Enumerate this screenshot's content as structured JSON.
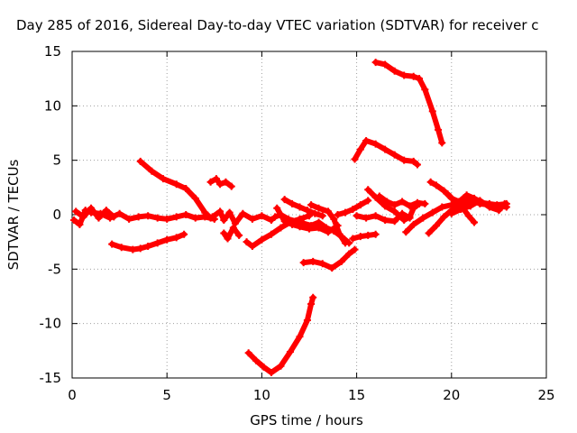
{
  "chart_data": {
    "type": "scatter",
    "title": "Day 285 of 2016, Sidereal Day-to-day VTEC variation (SDTVAR) for receiver c",
    "xlabel": "GPS time / hours",
    "ylabel": "SDTVAR / TECUs",
    "xlim": [
      0,
      25
    ],
    "ylim": [
      -15,
      15
    ],
    "x_ticks": [
      0,
      5,
      10,
      15,
      20,
      25
    ],
    "y_ticks": [
      -15,
      -10,
      -5,
      0,
      5,
      10,
      15
    ],
    "grid": true,
    "marker_color": "#ff0000",
    "series": [
      {
        "values": [
          [
            16.0,
            14.0
          ],
          [
            16.5,
            13.8
          ],
          [
            17.0,
            13.2
          ],
          [
            17.5,
            12.8
          ],
          [
            18.0,
            12.7
          ],
          [
            18.3,
            12.5
          ],
          [
            18.6,
            11.5
          ],
          [
            19.0,
            9.5
          ],
          [
            19.3,
            7.8
          ],
          [
            19.5,
            6.6
          ]
        ]
      },
      {
        "values": [
          [
            14.9,
            5.1
          ],
          [
            15.2,
            6.0
          ],
          [
            15.5,
            6.8
          ],
          [
            16.0,
            6.5
          ],
          [
            16.5,
            6.0
          ],
          [
            17.0,
            5.5
          ],
          [
            17.5,
            5.0
          ],
          [
            18.0,
            4.9
          ],
          [
            18.2,
            4.6
          ]
        ]
      },
      {
        "values": [
          [
            3.6,
            4.9
          ],
          [
            4.2,
            4.0
          ],
          [
            4.8,
            3.3
          ],
          [
            5.5,
            2.8
          ],
          [
            6.0,
            2.4
          ],
          [
            6.5,
            1.5
          ],
          [
            7.0,
            0.2
          ],
          [
            7.3,
            -0.3
          ]
        ]
      },
      {
        "values": [
          [
            7.3,
            3.0
          ],
          [
            7.6,
            3.3
          ],
          [
            7.8,
            2.8
          ],
          [
            8.1,
            3.0
          ],
          [
            8.4,
            2.6
          ]
        ]
      },
      {
        "values": [
          [
            0.1,
            -0.5
          ],
          [
            0.4,
            -0.9
          ],
          [
            0.7,
            0.4
          ],
          [
            1.0,
            0.2
          ],
          [
            1.5,
            0.1
          ],
          [
            2.0,
            -0.3
          ],
          [
            2.5,
            0.1
          ],
          [
            3.0,
            -0.4
          ],
          [
            3.5,
            -0.2
          ],
          [
            4.0,
            -0.1
          ],
          [
            4.5,
            -0.3
          ],
          [
            5.0,
            -0.4
          ],
          [
            5.5,
            -0.2
          ],
          [
            6.0,
            0.0
          ],
          [
            6.5,
            -0.3
          ],
          [
            7.0,
            -0.2
          ],
          [
            7.5,
            -0.4
          ]
        ]
      },
      {
        "values": [
          [
            0.2,
            0.3
          ],
          [
            0.6,
            -0.2
          ],
          [
            1.0,
            0.6
          ],
          [
            1.4,
            -0.3
          ],
          [
            1.8,
            0.4
          ],
          [
            2.2,
            -0.2
          ]
        ]
      },
      {
        "values": [
          [
            7.4,
            -0.2
          ],
          [
            7.8,
            0.3
          ],
          [
            8.0,
            -0.5
          ],
          [
            8.3,
            0.2
          ],
          [
            8.6,
            -0.8
          ],
          [
            9.0,
            0.1
          ],
          [
            9.5,
            -0.4
          ],
          [
            10.0,
            -0.1
          ],
          [
            10.5,
            -0.5
          ]
        ]
      },
      {
        "values": [
          [
            8.0,
            -1.7
          ],
          [
            8.2,
            -2.2
          ],
          [
            8.5,
            -1.2
          ],
          [
            8.8,
            -1.9
          ]
        ]
      },
      {
        "values": [
          [
            2.1,
            -2.7
          ],
          [
            2.6,
            -3.0
          ],
          [
            3.2,
            -3.2
          ],
          [
            3.6,
            -3.1
          ],
          [
            4.0,
            -2.9
          ],
          [
            4.5,
            -2.6
          ],
          [
            5.0,
            -2.3
          ],
          [
            5.5,
            -2.1
          ],
          [
            5.9,
            -1.8
          ]
        ]
      },
      {
        "values": [
          [
            9.2,
            -2.5
          ],
          [
            9.5,
            -2.9
          ],
          [
            10.0,
            -2.3
          ],
          [
            10.5,
            -1.8
          ],
          [
            11.0,
            -1.2
          ],
          [
            11.5,
            -0.7
          ],
          [
            12.0,
            -0.4
          ],
          [
            12.5,
            -0.1
          ]
        ]
      },
      {
        "values": [
          [
            10.7,
            -0.2
          ],
          [
            11.0,
            0.0
          ],
          [
            11.4,
            -0.4
          ],
          [
            11.8,
            -0.6
          ],
          [
            12.2,
            -0.8
          ],
          [
            12.6,
            -1.0
          ],
          [
            13.0,
            -0.7
          ],
          [
            13.4,
            -1.2
          ],
          [
            13.8,
            -1.5
          ],
          [
            14.2,
            -2.0
          ],
          [
            14.6,
            -2.6
          ]
        ]
      },
      {
        "values": [
          [
            11.2,
            1.4
          ],
          [
            11.6,
            1.0
          ],
          [
            12.0,
            0.7
          ],
          [
            12.4,
            0.4
          ],
          [
            12.8,
            0.1
          ],
          [
            13.2,
            -0.1
          ]
        ]
      },
      {
        "values": [
          [
            10.8,
            0.6
          ],
          [
            11.2,
            -0.6
          ],
          [
            11.6,
            -0.9
          ],
          [
            12.0,
            -1.1
          ],
          [
            12.5,
            -1.3
          ],
          [
            13.0,
            -1.2
          ],
          [
            13.5,
            -1.6
          ],
          [
            14.0,
            -1.0
          ]
        ]
      },
      {
        "values": [
          [
            12.6,
            0.9
          ],
          [
            13.0,
            0.6
          ],
          [
            13.5,
            0.3
          ],
          [
            13.8,
            -0.4
          ],
          [
            14.1,
            -1.8
          ],
          [
            14.4,
            -2.6
          ]
        ]
      },
      {
        "values": [
          [
            14.0,
            0.0
          ],
          [
            14.4,
            0.2
          ],
          [
            14.8,
            0.5
          ],
          [
            15.2,
            0.9
          ],
          [
            15.6,
            1.3
          ]
        ]
      },
      {
        "values": [
          [
            14.8,
            -2.2
          ],
          [
            15.2,
            -2.0
          ],
          [
            15.6,
            -1.9
          ],
          [
            16.0,
            -1.8
          ]
        ]
      },
      {
        "values": [
          [
            12.2,
            -4.4
          ],
          [
            12.7,
            -4.3
          ],
          [
            13.2,
            -4.5
          ],
          [
            13.7,
            -4.9
          ],
          [
            14.2,
            -4.3
          ],
          [
            14.6,
            -3.6
          ],
          [
            14.9,
            -3.2
          ]
        ]
      },
      {
        "values": [
          [
            15.0,
            -0.1
          ],
          [
            15.5,
            -0.3
          ],
          [
            16.0,
            -0.1
          ],
          [
            16.5,
            -0.5
          ],
          [
            17.0,
            -0.6
          ],
          [
            17.4,
            0.1
          ],
          [
            17.8,
            -0.3
          ]
        ]
      },
      {
        "values": [
          [
            15.6,
            2.3
          ],
          [
            16.0,
            1.6
          ],
          [
            16.5,
            0.8
          ],
          [
            17.0,
            0.3
          ],
          [
            17.5,
            -0.5
          ],
          [
            17.8,
            -0.2
          ],
          [
            18.0,
            0.6
          ],
          [
            18.3,
            1.0
          ]
        ]
      },
      {
        "values": [
          [
            16.2,
            1.7
          ],
          [
            16.6,
            1.2
          ],
          [
            17.0,
            0.9
          ],
          [
            17.4,
            1.2
          ],
          [
            17.8,
            0.8
          ],
          [
            18.2,
            1.1
          ],
          [
            18.6,
            1.0
          ]
        ]
      },
      {
        "values": [
          [
            17.6,
            -1.6
          ],
          [
            18.0,
            -0.9
          ],
          [
            18.5,
            -0.3
          ],
          [
            19.0,
            0.2
          ],
          [
            19.5,
            0.7
          ],
          [
            20.0,
            0.9
          ],
          [
            20.5,
            1.1
          ],
          [
            21.0,
            1.0
          ]
        ]
      },
      {
        "values": [
          [
            18.8,
            -1.7
          ],
          [
            19.2,
            -1.0
          ],
          [
            19.6,
            -0.2
          ],
          [
            20.0,
            0.4
          ],
          [
            20.5,
            0.9
          ],
          [
            21.0,
            1.4
          ],
          [
            21.5,
            1.0
          ],
          [
            22.0,
            0.9
          ],
          [
            22.5,
            0.8
          ],
          [
            22.9,
            0.7
          ]
        ]
      },
      {
        "values": [
          [
            18.9,
            3.0
          ],
          [
            19.2,
            2.7
          ],
          [
            19.6,
            2.2
          ],
          [
            20.0,
            1.5
          ],
          [
            20.4,
            1.2
          ],
          [
            20.8,
            1.8
          ],
          [
            21.2,
            1.5
          ],
          [
            21.6,
            1.1
          ],
          [
            22.0,
            1.0
          ],
          [
            22.4,
            0.9
          ],
          [
            22.9,
            1.0
          ]
        ]
      },
      {
        "values": [
          [
            19.8,
            1.9
          ],
          [
            20.2,
            1.2
          ],
          [
            20.6,
            0.6
          ],
          [
            20.9,
            -0.1
          ],
          [
            21.2,
            -0.7
          ]
        ]
      },
      {
        "values": [
          [
            20.0,
            0.1
          ],
          [
            20.5,
            0.5
          ],
          [
            21.0,
            0.8
          ],
          [
            21.5,
            1.3
          ],
          [
            22.0,
            0.7
          ],
          [
            22.5,
            0.4
          ],
          [
            22.8,
            1.0
          ]
        ]
      },
      {
        "values": [
          [
            9.3,
            -12.7
          ],
          [
            9.7,
            -13.4
          ],
          [
            10.1,
            -14.0
          ],
          [
            10.5,
            -14.5
          ],
          [
            11.0,
            -13.9
          ],
          [
            11.5,
            -12.6
          ],
          [
            12.0,
            -11.2
          ],
          [
            12.4,
            -9.7
          ],
          [
            12.6,
            -8.2
          ],
          [
            12.7,
            -7.6
          ]
        ]
      }
    ]
  }
}
